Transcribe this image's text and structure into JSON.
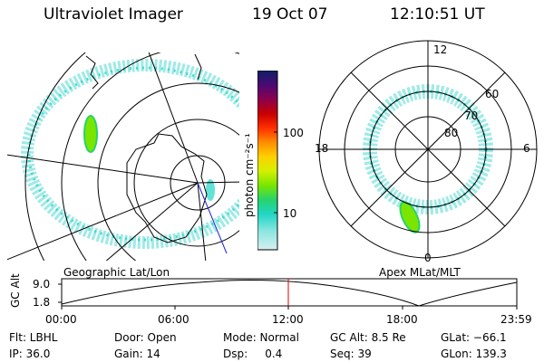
{
  "header": {
    "title": "Ultraviolet Imager",
    "date": "19 Oct 07",
    "time": "12:10:51 UT"
  },
  "geo_panel": {
    "label": "Geographic Lat/Lon"
  },
  "apex_panel": {
    "label": "Apex MLat/MLT",
    "mlt_labels": {
      "top": "12",
      "left": "18",
      "right": "6",
      "bottom": "0"
    },
    "lat_labels": [
      "60",
      "70",
      "80"
    ]
  },
  "colorbar": {
    "unit_label": "photon cm⁻²s⁻¹",
    "ticks": [
      "100",
      "10"
    ],
    "colors": [
      "#0e1f66",
      "#4b0a72",
      "#8c004e",
      "#c80000",
      "#ff2e00",
      "#ff8c00",
      "#ffd000",
      "#d4f000",
      "#7ae600",
      "#27d36a",
      "#1fd6c4",
      "#8fe6e2",
      "#d6efee"
    ]
  },
  "altitude_plot": {
    "ylabel": "GC Alt",
    "y_ticks": [
      "9.0",
      "1.8"
    ],
    "x_ticks": [
      "00:00",
      "06:00",
      "12:00",
      "18:00",
      "23:59"
    ],
    "current_time_color": "#e00000"
  },
  "info": {
    "flt": "Flt: LBHL",
    "ip": "IP: 36.0",
    "door": "Door: Open",
    "gain": "Gain: 14",
    "mode": "Mode: Normal",
    "dsp": "Dsp:     0.4",
    "gcalt": "GC Alt: 8.5 Re",
    "seq": "Seq: 39",
    "glat": "GLat: −66.1",
    "glon": "GLon: 139.3"
  }
}
